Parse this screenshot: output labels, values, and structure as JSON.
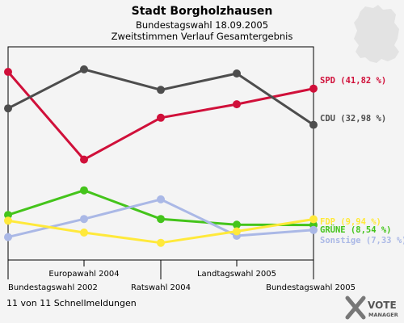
{
  "chart_data": {
    "type": "line",
    "title": "Stadt Borgholzhausen",
    "subtitle": "Bundestagswahl 18.09.2005",
    "subtitle2": "Zweitstimmen Verlauf Gesamtergebnis",
    "categories": [
      "Bundestagswahl 2002",
      "Europawahl 2004",
      "Ratswahl 2004",
      "Landtagswahl 2005",
      "Bundestagswahl 2005"
    ],
    "series": [
      {
        "name": "SPD",
        "label": "SPD (41,82 %)",
        "color": "#d0103a",
        "values": [
          45.9,
          24.5,
          34.7,
          38.0,
          41.82
        ]
      },
      {
        "name": "CDU",
        "label": "CDU (32,98 %)",
        "color": "#4d4d4d",
        "values": [
          37.0,
          46.5,
          41.5,
          45.5,
          32.98
        ]
      },
      {
        "name": "GRÜNE",
        "label": "GRÜNE (8,54 %)",
        "color": "#44c41b",
        "values": [
          11.0,
          17.0,
          10.0,
          8.6,
          8.54
        ]
      },
      {
        "name": "Sonstige",
        "label": "Sonstige (7,33 %)",
        "color": "#aab8e6",
        "values": [
          5.6,
          10.0,
          14.8,
          5.9,
          7.33
        ]
      },
      {
        "name": "FDP",
        "label": "FDP (9,94 %)",
        "color": "#ffe93b",
        "values": [
          9.6,
          6.7,
          4.2,
          7.0,
          9.94
        ]
      }
    ],
    "ylim": [
      0,
      52
    ],
    "grid": false
  },
  "footer": {
    "status": "11 von 11 Schnellmeldungen"
  },
  "logo": {
    "line1": "VOTE",
    "line2": "MANAGER"
  },
  "decor": {
    "map": "germany-map-silhouette"
  }
}
